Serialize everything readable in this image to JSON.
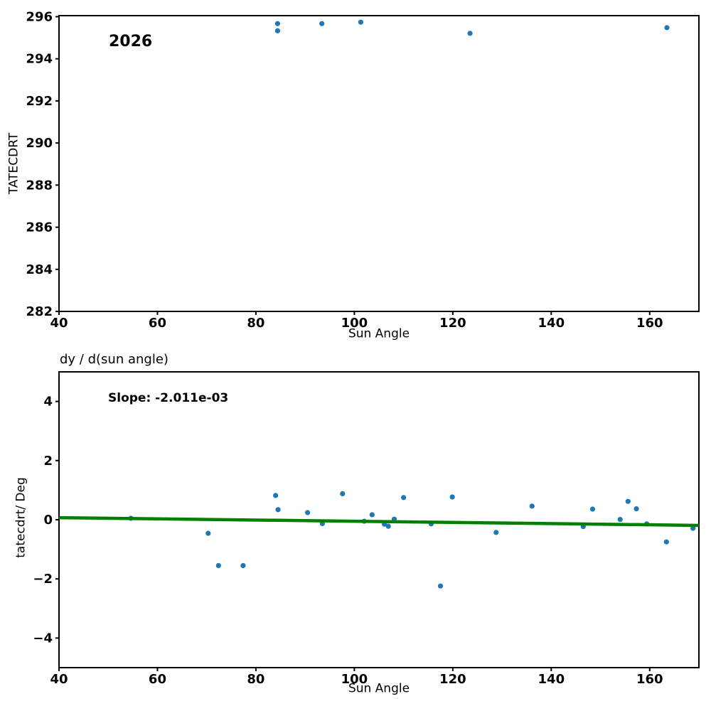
{
  "figure_bg": "#ffffff",
  "text_color": "#000000",
  "chart_data": [
    {
      "type": "scatter",
      "annotation": "2026",
      "xlabel": "Sun Angle",
      "ylabel": "TATECDRT",
      "xlim": [
        40,
        170
      ],
      "ylim": [
        282,
        296.05
      ],
      "xticks": [
        40,
        60,
        80,
        100,
        120,
        140,
        160
      ],
      "yticks": [
        282,
        284,
        286,
        288,
        290,
        292,
        294,
        296
      ],
      "grid": false,
      "legend": "none",
      "marker_color": "#1f77b4",
      "points": [
        [
          84.4,
          295.67
        ],
        [
          84.4,
          295.33
        ],
        [
          93.4,
          295.67
        ],
        [
          101.3,
          295.74
        ],
        [
          123.5,
          295.21
        ],
        [
          163.5,
          295.48
        ]
      ]
    },
    {
      "type": "scatter",
      "title": "dy / d(sun angle)",
      "annotation": "Slope: -2.011e-03",
      "xlabel": "Sun Angle",
      "ylabel": "tatecdrt/ Deg",
      "xlim": [
        40,
        170
      ],
      "ylim": [
        -5,
        5
      ],
      "xticks": [
        40,
        60,
        80,
        100,
        120,
        140,
        160
      ],
      "yticks": [
        -4,
        -2,
        0,
        2,
        4
      ],
      "grid": false,
      "legend": "none",
      "marker_color": "#1f77b4",
      "points": [
        [
          54.6,
          0.05
        ],
        [
          70.3,
          -0.46
        ],
        [
          72.4,
          -1.55
        ],
        [
          77.4,
          -1.55
        ],
        [
          84.0,
          0.82
        ],
        [
          84.5,
          0.34
        ],
        [
          90.5,
          0.24
        ],
        [
          93.5,
          -0.13
        ],
        [
          97.6,
          0.88
        ],
        [
          102.0,
          -0.05
        ],
        [
          103.6,
          0.17
        ],
        [
          106.1,
          -0.15
        ],
        [
          106.9,
          -0.22
        ],
        [
          108.1,
          0.02
        ],
        [
          110.0,
          0.75
        ],
        [
          115.6,
          -0.14
        ],
        [
          117.5,
          -2.24
        ],
        [
          119.9,
          0.77
        ],
        [
          128.8,
          -0.43
        ],
        [
          136.1,
          0.46
        ],
        [
          146.5,
          -0.23
        ],
        [
          148.4,
          0.36
        ],
        [
          154.0,
          0.01
        ],
        [
          155.6,
          0.62
        ],
        [
          157.3,
          0.37
        ],
        [
          159.4,
          -0.14
        ],
        [
          163.4,
          -0.75
        ],
        [
          168.8,
          -0.29
        ]
      ],
      "fit_line": {
        "slope": -0.002011,
        "x": [
          40,
          170
        ],
        "y": [
          0.07,
          -0.191
        ],
        "color": "#008000"
      }
    }
  ]
}
